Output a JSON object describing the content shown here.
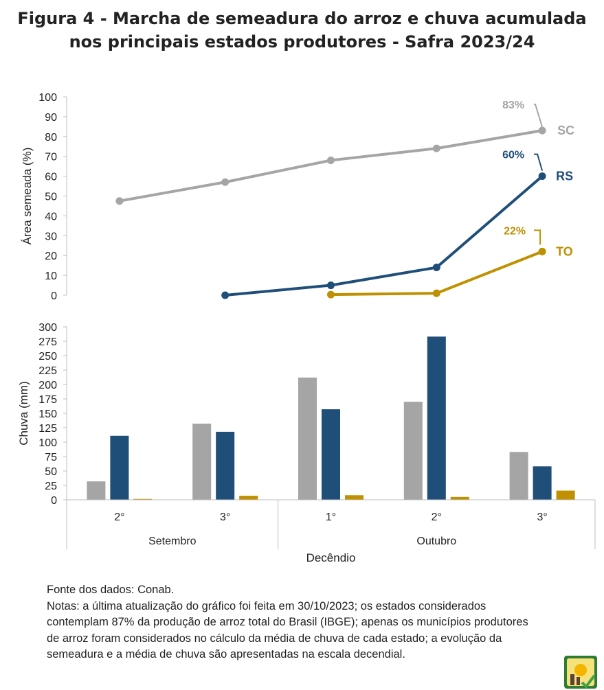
{
  "title": {
    "line1": "Figura 4 - Marcha de semeadura do arroz e chuva acumulada",
    "line2": "nos principais estados produtores - Safra 2023/24"
  },
  "chart_data": [
    {
      "type": "line",
      "ylabel": "Área semeada (%)",
      "ylim": [
        0,
        100
      ],
      "yticks": [
        0,
        10,
        20,
        30,
        40,
        50,
        60,
        70,
        80,
        90,
        100
      ],
      "x": [
        "Setembro 2°",
        "Setembro 3°",
        "Outubro 1°",
        "Outubro 2°",
        "Outubro 3°"
      ],
      "series": [
        {
          "name": "SC",
          "color": "#a5a5a5",
          "values": [
            47.5,
            57,
            68,
            74,
            83
          ],
          "end_label": "83%"
        },
        {
          "name": "RS",
          "color": "#1f4e79",
          "values": [
            null,
            0,
            5,
            14,
            60
          ],
          "end_label": "60%"
        },
        {
          "name": "TO",
          "color": "#bf9000",
          "values": [
            null,
            null,
            0.3,
            1,
            22
          ],
          "end_label": "22%"
        }
      ]
    },
    {
      "type": "bar",
      "ylabel": "Chuva (mm)",
      "xlabel": "Decêndio",
      "ylim": [
        0,
        300
      ],
      "yticks": [
        0,
        25,
        50,
        75,
        100,
        125,
        150,
        175,
        200,
        225,
        250,
        275,
        300
      ],
      "categories": [
        "2°",
        "3°",
        "1°",
        "2°",
        "3°"
      ],
      "groups": [
        {
          "label": "Setembro",
          "span": [
            0,
            1
          ]
        },
        {
          "label": "Outubro",
          "span": [
            2,
            4
          ]
        }
      ],
      "series": [
        {
          "name": "SC",
          "color": "#a5a5a5",
          "values": [
            32,
            132,
            212,
            170,
            83
          ]
        },
        {
          "name": "RS",
          "color": "#1f4e79",
          "values": [
            111,
            118,
            157,
            283,
            58
          ]
        },
        {
          "name": "TO",
          "color": "#bf9000",
          "values": [
            1.5,
            7,
            8,
            5,
            16
          ]
        }
      ]
    }
  ],
  "notes": {
    "source": "Fonte dos dados: Conab.",
    "lines": [
      "Notas: a última atualização do gráfico foi feita em 30/10/2023; os estados considerados",
      "contemplam 87% da produção de arroz total do Brasil (IBGE); apenas os municípios produtores",
      "de arroz foram considerados no cálculo da média de chuva de cada estado; a evolução da",
      "semeadura e a média de chuva são apresentadas na escala decendial."
    ]
  }
}
